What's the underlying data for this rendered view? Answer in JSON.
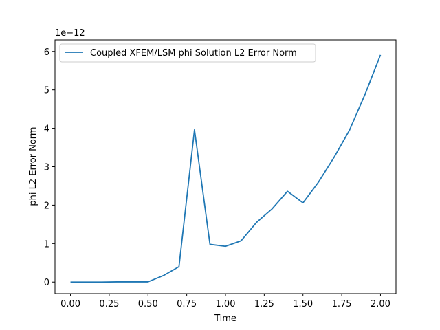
{
  "chart_data": {
    "type": "line",
    "title": "",
    "xlabel": "Time",
    "ylabel": "phi L2 Error Norm",
    "y_offset_text": "1e−12",
    "xlim": [
      -0.1,
      2.1
    ],
    "ylim": [
      -0.3,
      6.3
    ],
    "x_ticks": [
      0.0,
      0.25,
      0.5,
      0.75,
      1.0,
      1.25,
      1.5,
      1.75,
      2.0
    ],
    "x_tick_labels": [
      "0.00",
      "0.25",
      "0.50",
      "0.75",
      "1.00",
      "1.25",
      "1.50",
      "1.75",
      "2.00"
    ],
    "y_ticks": [
      0,
      1,
      2,
      3,
      4,
      5,
      6
    ],
    "y_tick_labels": [
      "0",
      "1",
      "2",
      "3",
      "4",
      "5",
      "6"
    ],
    "grid": false,
    "legend_position": "top-left",
    "series": [
      {
        "name": "Coupled XFEM/LSM phi Solution L2 Error Norm",
        "color": "#1f77b4",
        "x": [
          0.0,
          0.1,
          0.2,
          0.3,
          0.4,
          0.5,
          0.6,
          0.7,
          0.8,
          0.9,
          1.0,
          1.1,
          1.2,
          1.3,
          1.4,
          1.5,
          1.6,
          1.7,
          1.8,
          1.9,
          2.0
        ],
        "y": [
          0.0,
          0.0,
          0.0,
          0.005,
          0.005,
          0.005,
          0.17,
          0.4,
          3.96,
          0.98,
          0.93,
          1.07,
          1.55,
          1.9,
          2.36,
          2.06,
          2.6,
          3.24,
          3.95,
          4.88,
          5.91
        ]
      }
    ]
  }
}
